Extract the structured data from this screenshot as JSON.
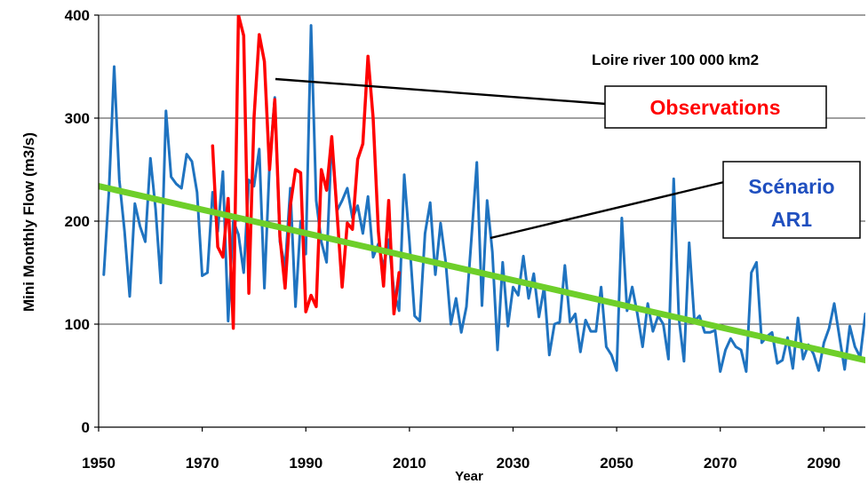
{
  "chart_data": {
    "type": "line",
    "xlabel": "Year",
    "ylabel": "Mini Monthly Flow (m3/s)",
    "xlim": [
      1950,
      2098
    ],
    "ylim": [
      0,
      400
    ],
    "x_ticks": [
      1950,
      1970,
      1990,
      2010,
      2030,
      2050,
      2070,
      2090
    ],
    "y_ticks": [
      0,
      100,
      200,
      300,
      400
    ],
    "grid": "horizontal",
    "annotations": {
      "station": "Loire river 100 000 km2",
      "observations_label": "Observations",
      "scenario_label_line1": "Scénario",
      "scenario_label_line2": "AR1"
    },
    "series": [
      {
        "color": "#1f73c0",
        "points": [
          [
            1951,
            148
          ],
          [
            1952,
            230
          ],
          [
            1953,
            350
          ],
          [
            1954,
            240
          ],
          [
            1955,
            190
          ],
          [
            1956,
            127
          ],
          [
            1957,
            217
          ],
          [
            1958,
            195
          ],
          [
            1959,
            180
          ],
          [
            1960,
            261
          ],
          [
            1961,
            212
          ],
          [
            1962,
            140
          ],
          [
            1963,
            307
          ],
          [
            1964,
            243
          ],
          [
            1965,
            236
          ],
          [
            1966,
            232
          ],
          [
            1967,
            265
          ],
          [
            1968,
            258
          ],
          [
            1969,
            228
          ],
          [
            1970,
            147
          ],
          [
            1971,
            150
          ],
          [
            1972,
            228
          ],
          [
            1973,
            190
          ],
          [
            1974,
            248
          ],
          [
            1975,
            103
          ],
          [
            1976,
            200
          ],
          [
            1977,
            187
          ],
          [
            1978,
            150
          ],
          [
            1979,
            240
          ],
          [
            1980,
            234
          ],
          [
            1981,
            270
          ],
          [
            1982,
            135
          ],
          [
            1983,
            255
          ],
          [
            1984,
            320
          ],
          [
            1985,
            180
          ],
          [
            1986,
            155
          ],
          [
            1987,
            232
          ],
          [
            1988,
            117
          ],
          [
            1989,
            200
          ],
          [
            1990,
            168
          ],
          [
            1991,
            390
          ],
          [
            1992,
            220
          ],
          [
            1993,
            180
          ],
          [
            1994,
            160
          ],
          [
            1995,
            280
          ],
          [
            1996,
            210
          ],
          [
            1997,
            220
          ],
          [
            1998,
            232
          ],
          [
            1999,
            203
          ],
          [
            2000,
            215
          ],
          [
            2001,
            188
          ],
          [
            2002,
            224
          ],
          [
            2003,
            165
          ],
          [
            2004,
            178
          ],
          [
            2005,
            155
          ],
          [
            2006,
            182
          ],
          [
            2007,
            132
          ],
          [
            2008,
            113
          ],
          [
            2009,
            245
          ],
          [
            2010,
            180
          ],
          [
            2011,
            108
          ],
          [
            2012,
            103
          ],
          [
            2013,
            188
          ],
          [
            2014,
            218
          ],
          [
            2015,
            148
          ],
          [
            2016,
            198
          ],
          [
            2017,
            160
          ],
          [
            2018,
            100
          ],
          [
            2019,
            125
          ],
          [
            2020,
            92
          ],
          [
            2021,
            117
          ],
          [
            2022,
            185
          ],
          [
            2023,
            257
          ],
          [
            2024,
            118
          ],
          [
            2025,
            220
          ],
          [
            2026,
            170
          ],
          [
            2027,
            75
          ],
          [
            2028,
            160
          ],
          [
            2029,
            98
          ],
          [
            2030,
            136
          ],
          [
            2031,
            128
          ],
          [
            2032,
            166
          ],
          [
            2033,
            125
          ],
          [
            2034,
            149
          ],
          [
            2035,
            107
          ],
          [
            2036,
            136
          ],
          [
            2037,
            70
          ],
          [
            2038,
            100
          ],
          [
            2039,
            102
          ],
          [
            2040,
            157
          ],
          [
            2041,
            102
          ],
          [
            2042,
            110
          ],
          [
            2043,
            73
          ],
          [
            2044,
            104
          ],
          [
            2045,
            93
          ],
          [
            2046,
            93
          ],
          [
            2047,
            136
          ],
          [
            2048,
            78
          ],
          [
            2049,
            70
          ],
          [
            2050,
            55
          ],
          [
            2051,
            203
          ],
          [
            2052,
            113
          ],
          [
            2053,
            136
          ],
          [
            2054,
            110
          ],
          [
            2055,
            78
          ],
          [
            2056,
            120
          ],
          [
            2057,
            93
          ],
          [
            2058,
            108
          ],
          [
            2059,
            100
          ],
          [
            2060,
            66
          ],
          [
            2061,
            241
          ],
          [
            2062,
            106
          ],
          [
            2063,
            64
          ],
          [
            2064,
            179
          ],
          [
            2065,
            103
          ],
          [
            2066,
            108
          ],
          [
            2067,
            92
          ],
          [
            2068,
            92
          ],
          [
            2069,
            94
          ],
          [
            2070,
            54
          ],
          [
            2071,
            75
          ],
          [
            2072,
            86
          ],
          [
            2073,
            78
          ],
          [
            2074,
            75
          ],
          [
            2075,
            54
          ],
          [
            2076,
            150
          ],
          [
            2077,
            160
          ],
          [
            2078,
            82
          ],
          [
            2079,
            88
          ],
          [
            2080,
            92
          ],
          [
            2081,
            62
          ],
          [
            2082,
            65
          ],
          [
            2083,
            87
          ],
          [
            2084,
            57
          ],
          [
            2085,
            106
          ],
          [
            2086,
            66
          ],
          [
            2087,
            80
          ],
          [
            2088,
            71
          ],
          [
            2089,
            55
          ],
          [
            2090,
            82
          ],
          [
            2091,
            96
          ],
          [
            2092,
            120
          ],
          [
            2093,
            88
          ],
          [
            2094,
            56
          ],
          [
            2095,
            98
          ],
          [
            2096,
            78
          ],
          [
            2097,
            68
          ],
          [
            2098,
            110
          ]
        ]
      },
      {
        "color": "#ff0000",
        "points": [
          [
            1972,
            273
          ],
          [
            1973,
            175
          ],
          [
            1974,
            165
          ],
          [
            1975,
            222
          ],
          [
            1976,
            96
          ],
          [
            1977,
            400
          ],
          [
            1978,
            380
          ],
          [
            1979,
            130
          ],
          [
            1980,
            300
          ],
          [
            1981,
            381
          ],
          [
            1982,
            355
          ],
          [
            1983,
            250
          ],
          [
            1984,
            318
          ],
          [
            1985,
            185
          ],
          [
            1986,
            135
          ],
          [
            1987,
            215
          ],
          [
            1988,
            250
          ],
          [
            1989,
            247
          ],
          [
            1990,
            112
          ],
          [
            1991,
            128
          ],
          [
            1992,
            117
          ],
          [
            1993,
            250
          ],
          [
            1994,
            230
          ],
          [
            1995,
            282
          ],
          [
            1996,
            210
          ],
          [
            1997,
            136
          ],
          [
            1998,
            198
          ],
          [
            1999,
            192
          ],
          [
            2000,
            260
          ],
          [
            2001,
            275
          ],
          [
            2002,
            360
          ],
          [
            2003,
            300
          ],
          [
            2004,
            190
          ],
          [
            2005,
            137
          ],
          [
            2006,
            220
          ],
          [
            2007,
            110
          ],
          [
            2008,
            150
          ]
        ]
      },
      {
        "color": "#6ecf2a",
        "points": [
          [
            1950,
            234
          ],
          [
            2098,
            65
          ]
        ]
      }
    ]
  }
}
